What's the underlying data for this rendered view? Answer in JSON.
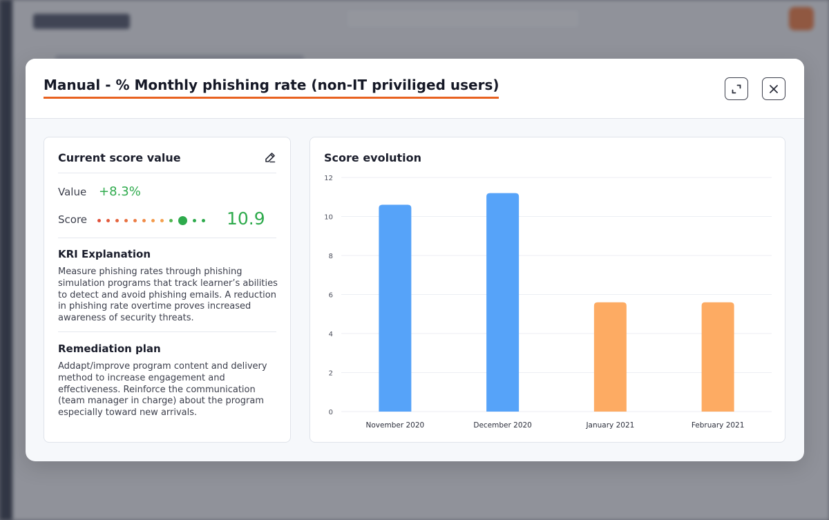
{
  "modal": {
    "title": "Manual - % Monthly phishing rate (non-IT priviliged users)"
  },
  "score_card": {
    "title": "Current score value",
    "value_label": "Value",
    "value": "+8.3%",
    "score_label": "Score",
    "score": "10.9",
    "kri_title": "KRI Explanation",
    "kri_text": "Measure phishing rates through phishing simulation programs that track learner’s abilities to detect and avoid phishing emails. A reduction in phishing rate overtime proves increased awareness of security threats.",
    "remediation_title": "Remediation plan",
    "remediation_text": "Addapt/improve program content and delivery method to increase engagement and effectiveness. Reinforce the communication (team manager in charge) about the program especially toward new arrivals."
  },
  "score_scale": {
    "dot_colors": [
      "#e0503a",
      "#e25a3c",
      "#e4643e",
      "#e87040",
      "#ec7c44",
      "#f08a46",
      "#f39a4a",
      "#f4a04e",
      "#4fb64f",
      "#2eaa4c",
      "#2eaa4c",
      "#2eaa4c"
    ],
    "selected_index": 9
  },
  "colors": {
    "accent": "#e8611f",
    "positive": "#2eaa4c",
    "bar_blue": "#56a3f9",
    "bar_orange": "#fdab63"
  },
  "chart_data": {
    "type": "bar",
    "title": "Score evolution",
    "categories": [
      "November 2020",
      "December 2020",
      "January 2021",
      "February 2021"
    ],
    "values": [
      10.6,
      11.2,
      5.6,
      5.6
    ],
    "bar_colors": [
      "#56a3f9",
      "#56a3f9",
      "#fdab63",
      "#fdab63"
    ],
    "ylim": [
      0,
      12
    ],
    "yticks": [
      0,
      2,
      4,
      6,
      8,
      10,
      12
    ],
    "grid": true,
    "legend": "none",
    "xlabel": "",
    "ylabel": ""
  }
}
